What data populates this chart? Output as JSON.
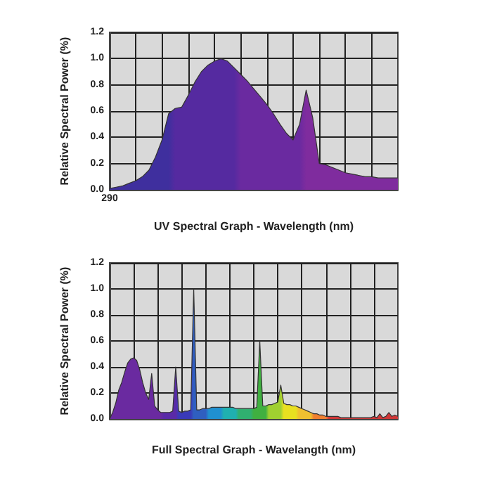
{
  "chart_data": [
    {
      "type": "area",
      "xlabel": "UV Spectral Graph - Wavelength (nm)",
      "ylabel": "Relative Spectral Power (%)",
      "categories": [
        "290",
        null,
        null,
        null,
        null,
        null,
        null,
        null,
        null,
        null,
        null,
        null,
        null,
        null,
        null,
        null,
        null,
        null,
        null,
        null,
        null,
        null,
        null,
        null,
        null,
        null,
        null,
        null,
        null,
        null,
        null,
        null,
        null,
        null,
        null,
        null,
        null,
        null,
        null,
        null,
        null,
        null,
        null,
        null,
        null
      ],
      "values": [
        0.01,
        0.02,
        0.03,
        0.05,
        0.07,
        0.1,
        0.15,
        0.25,
        0.38,
        0.58,
        0.62,
        0.63,
        0.72,
        0.82,
        0.9,
        0.95,
        0.98,
        1.0,
        0.98,
        0.93,
        0.88,
        0.83,
        0.77,
        0.71,
        0.65,
        0.58,
        0.5,
        0.43,
        0.38,
        0.5,
        0.76,
        0.55,
        0.2,
        0.19,
        0.17,
        0.15,
        0.13,
        0.12,
        0.11,
        0.1,
        0.1,
        0.09,
        0.09,
        0.09,
        0.09
      ],
      "colors": [
        "#3f2f9e",
        "#3f2f9e",
        "#3f2f9e",
        "#3f2f9e",
        "#3f2f9e",
        "#3f2f9e",
        "#3f2f9e",
        "#3f2f9e",
        "#3f2f9e",
        "#3f2f9e",
        "#552aa0",
        "#552aa0",
        "#552aa0",
        "#552aa0",
        "#552aa0",
        "#552aa0",
        "#552aa0",
        "#552aa0",
        "#552aa0",
        "#552aa0",
        "#6a2aa0",
        "#6a2aa0",
        "#6a2aa0",
        "#6a2aa0",
        "#6a2aa0",
        "#6a2aa0",
        "#6a2aa0",
        "#6a2aa0",
        "#6a2aa0",
        "#6a2aa0",
        "#7f2c9e",
        "#7f2c9e",
        "#7f2c9e",
        "#7f2c9e",
        "#7f2c9e",
        "#7f2c9e",
        "#7f2c9e",
        "#7f2c9e",
        "#7f2c9e",
        "#7f2c9e",
        "#7f2c9e",
        "#7f2c9e",
        "#7f2c9e",
        "#7f2c9e",
        "#7f2c9e"
      ],
      "ylim": [
        0,
        1.2
      ],
      "yticks": [
        {
          "value": 0,
          "label": "0.0"
        },
        {
          "value": 0.2,
          "label": "0.2"
        },
        {
          "value": 0.4,
          "label": "0.4"
        },
        {
          "value": 0.6,
          "label": "0.6"
        },
        {
          "value": 0.8,
          "label": "0.8"
        },
        {
          "value": 1.0,
          "label": "1.0"
        },
        {
          "value": 1.2,
          "label": "1.2"
        }
      ],
      "grid": true
    },
    {
      "type": "area",
      "xlabel": "Full Spectral Graph - Wavelangth (nm)",
      "ylabel": "Relative Spectral Power (%)",
      "tick_labels": "y",
      "categories": [
        null,
        null,
        null,
        null,
        null,
        null,
        null,
        null,
        null,
        null,
        null,
        null,
        null,
        null,
        null,
        null,
        null,
        null,
        null,
        null,
        null,
        null,
        null,
        null,
        null,
        null,
        null,
        null,
        null,
        null,
        null,
        null,
        null,
        null,
        null,
        null,
        null,
        null,
        null,
        null,
        null,
        null,
        null,
        null,
        null,
        null,
        null,
        null,
        null,
        null,
        null,
        null,
        null,
        null,
        null,
        null,
        null,
        null,
        null,
        null,
        null,
        null,
        null,
        null,
        null,
        null,
        null,
        null,
        null,
        null,
        null,
        null,
        null,
        null,
        null,
        null,
        null,
        null,
        null,
        null,
        null,
        null,
        null,
        null,
        null,
        null,
        null,
        null,
        null,
        null,
        null,
        null,
        null,
        null,
        null,
        null,
        null
      ],
      "values": [
        0.0,
        0.05,
        0.12,
        0.22,
        0.28,
        0.36,
        0.43,
        0.46,
        0.47,
        0.45,
        0.38,
        0.28,
        0.2,
        0.15,
        0.35,
        0.1,
        0.07,
        0.05,
        0.05,
        0.05,
        0.05,
        0.06,
        0.4,
        0.06,
        0.05,
        0.06,
        0.06,
        0.07,
        1.0,
        0.07,
        0.07,
        0.08,
        0.08,
        0.08,
        0.09,
        0.09,
        0.09,
        0.09,
        0.09,
        0.09,
        0.09,
        0.09,
        0.08,
        0.08,
        0.08,
        0.08,
        0.08,
        0.08,
        0.08,
        0.09,
        0.6,
        0.1,
        0.1,
        0.11,
        0.11,
        0.12,
        0.13,
        0.26,
        0.12,
        0.11,
        0.11,
        0.1,
        0.1,
        0.09,
        0.08,
        0.07,
        0.06,
        0.05,
        0.04,
        0.04,
        0.03,
        0.03,
        0.02,
        0.02,
        0.02,
        0.02,
        0.02,
        0.01,
        0.01,
        0.01,
        0.01,
        0.01,
        0.01,
        0.01,
        0.01,
        0.01,
        0.01,
        0.01,
        0.02,
        0.01,
        0.04,
        0.01,
        0.02,
        0.05,
        0.02,
        0.03,
        0.02
      ],
      "colors": [
        "#6a2aa0",
        "#6a2aa0",
        "#6a2aa0",
        "#6a2aa0",
        "#6a2aa0",
        "#6a2aa0",
        "#6a2aa0",
        "#6a2aa0",
        "#6a2aa0",
        "#6a2aa0",
        "#6a2aa0",
        "#6a2aa0",
        "#6a2aa0",
        "#6a2aa0",
        "#6a2aa0",
        "#6a2aa0",
        "#6a2aa0",
        "#6a2aa0",
        "#5a2aa8",
        "#5a2aa8",
        "#5a2aa8",
        "#5a2aa8",
        "#5a2aa8",
        "#3a3ab8",
        "#3a3ab8",
        "#3a3ab8",
        "#3a3ab8",
        "#3a3ab8",
        "#2f5fc0",
        "#2f5fc0",
        "#2f5fc0",
        "#2f5fc0",
        "#2f5fc0",
        "#2090d0",
        "#2090d0",
        "#2090d0",
        "#2090d0",
        "#2090d0",
        "#20b0b0",
        "#20b0b0",
        "#20b0b0",
        "#20b0b0",
        "#20b0b0",
        "#30b070",
        "#30b070",
        "#30b070",
        "#30b070",
        "#30b070",
        "#40b040",
        "#40b040",
        "#40b040",
        "#40b040",
        "#40b040",
        "#a0d030",
        "#a0d030",
        "#a0d030",
        "#a0d030",
        "#a0d030",
        "#e8e020",
        "#e8e020",
        "#e8e020",
        "#e8e020",
        "#e8e020",
        "#f0c030",
        "#f0c030",
        "#f0c030",
        "#f0c030",
        "#f0c030",
        "#f08030",
        "#f08030",
        "#f08030",
        "#f08030",
        "#f08030",
        "#d03838",
        "#d03838",
        "#d03838",
        "#d03838",
        "#d03838",
        "#d03838",
        "#d03838",
        "#d03838",
        "#d03838",
        "#d03838",
        "#d03838",
        "#d03838",
        "#d03838",
        "#d03838",
        "#d03838",
        "#d03838",
        "#d03838",
        "#d03838",
        "#d03838",
        "#d03838",
        "#d03838",
        "#d03838",
        "#d03838",
        "#d03838"
      ],
      "ylim": [
        0,
        1.2
      ],
      "yticks": [
        {
          "value": 0,
          "label": "0.0"
        },
        {
          "value": 0.2,
          "label": "0.2"
        },
        {
          "value": 0.4,
          "label": "0.4"
        },
        {
          "value": 0.6,
          "label": "0.6"
        },
        {
          "value": 0.8,
          "label": "0.8"
        },
        {
          "value": 1.0,
          "label": "1.0"
        },
        {
          "value": 1.2,
          "label": "1.2"
        }
      ],
      "grid": true
    }
  ]
}
